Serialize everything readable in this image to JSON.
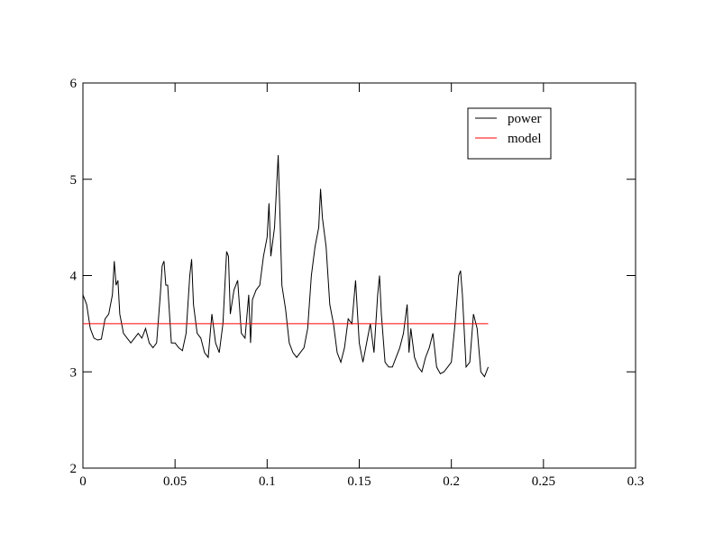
{
  "chart_data": {
    "type": "line",
    "xlim": [
      0,
      0.3
    ],
    "ylim": [
      2,
      6
    ],
    "xticks": [
      0,
      0.05,
      0.1,
      0.15,
      0.2,
      0.25,
      0.3
    ],
    "yticks": [
      2,
      3,
      4,
      5,
      6
    ],
    "legend": "upper-right",
    "series": [
      {
        "name": "power",
        "color": "#000000",
        "x": [
          0,
          0.002,
          0.004,
          0.006,
          0.008,
          0.01,
          0.012,
          0.014,
          0.016,
          0.017,
          0.018,
          0.019,
          0.02,
          0.022,
          0.024,
          0.026,
          0.028,
          0.03,
          0.032,
          0.034,
          0.036,
          0.038,
          0.04,
          0.042,
          0.043,
          0.044,
          0.045,
          0.046,
          0.048,
          0.05,
          0.052,
          0.054,
          0.056,
          0.058,
          0.059,
          0.06,
          0.062,
          0.064,
          0.066,
          0.068,
          0.07,
          0.072,
          0.074,
          0.076,
          0.078,
          0.079,
          0.08,
          0.082,
          0.084,
          0.086,
          0.088,
          0.09,
          0.091,
          0.092,
          0.094,
          0.096,
          0.098,
          0.1,
          0.101,
          0.102,
          0.104,
          0.106,
          0.107,
          0.108,
          0.11,
          0.112,
          0.114,
          0.116,
          0.118,
          0.12,
          0.122,
          0.124,
          0.126,
          0.128,
          0.129,
          0.13,
          0.132,
          0.134,
          0.136,
          0.138,
          0.14,
          0.142,
          0.144,
          0.146,
          0.148,
          0.15,
          0.152,
          0.154,
          0.156,
          0.158,
          0.16,
          0.161,
          0.162,
          0.164,
          0.166,
          0.168,
          0.17,
          0.172,
          0.174,
          0.176,
          0.177,
          0.178,
          0.18,
          0.182,
          0.184,
          0.186,
          0.188,
          0.19,
          0.192,
          0.194,
          0.196,
          0.198,
          0.2,
          0.202,
          0.204,
          0.205,
          0.206,
          0.208,
          0.21,
          0.212,
          0.214,
          0.216,
          0.218,
          0.22
        ],
        "values": [
          3.8,
          3.7,
          3.45,
          3.35,
          3.33,
          3.34,
          3.55,
          3.6,
          3.8,
          4.15,
          3.9,
          3.95,
          3.6,
          3.4,
          3.35,
          3.3,
          3.35,
          3.4,
          3.35,
          3.45,
          3.3,
          3.25,
          3.3,
          3.8,
          4.1,
          4.15,
          3.9,
          3.9,
          3.3,
          3.3,
          3.25,
          3.22,
          3.4,
          4.0,
          4.17,
          3.7,
          3.4,
          3.35,
          3.2,
          3.15,
          3.6,
          3.3,
          3.2,
          3.5,
          4.25,
          4.2,
          3.6,
          3.85,
          3.95,
          3.4,
          3.35,
          3.8,
          3.3,
          3.75,
          3.85,
          3.9,
          4.2,
          4.4,
          4.75,
          4.2,
          4.5,
          5.25,
          4.6,
          3.9,
          3.65,
          3.3,
          3.2,
          3.15,
          3.2,
          3.25,
          3.45,
          4.0,
          4.3,
          4.5,
          4.9,
          4.6,
          4.3,
          3.7,
          3.5,
          3.2,
          3.1,
          3.25,
          3.55,
          3.5,
          3.95,
          3.3,
          3.1,
          3.3,
          3.5,
          3.2,
          3.8,
          4.0,
          3.6,
          3.1,
          3.05,
          3.05,
          3.15,
          3.25,
          3.4,
          3.7,
          3.2,
          3.45,
          3.15,
          3.05,
          3.0,
          3.15,
          3.25,
          3.4,
          3.05,
          2.98,
          3.0,
          3.05,
          3.1,
          3.5,
          4.0,
          4.05,
          3.8,
          3.05,
          3.1,
          3.6,
          3.45,
          3.0,
          2.95,
          3.05
        ]
      },
      {
        "name": "model",
        "color": "#ff0000",
        "x": [
          0,
          0.22
        ],
        "values": [
          3.5,
          3.5
        ]
      }
    ]
  }
}
